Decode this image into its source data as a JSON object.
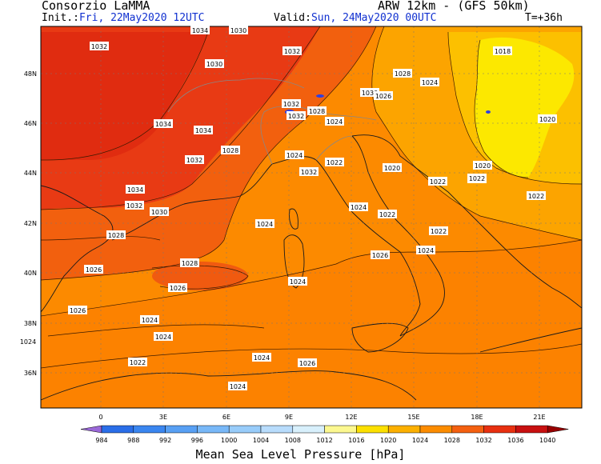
{
  "header": {
    "org": "Consorzio LaMMA",
    "model": "ARW 12km - (GFS 50km)",
    "init_label": "Init.:",
    "init_value": "Fri, 22May2020 12UTC",
    "valid_label": "Valid:",
    "valid_value": "Sun, 24May2020 00UTC",
    "lead": "T=+36h"
  },
  "axes": {
    "lat_labels": [
      "48N",
      "46N",
      "44N",
      "42N",
      "40N",
      "38N",
      "36N"
    ],
    "lon_labels": [
      "0",
      "3E",
      "6E",
      "9E",
      "12E",
      "15E",
      "18E",
      "21E"
    ]
  },
  "isobar_labels": [
    "1034",
    "1032",
    "1030",
    "1032",
    "1030",
    "1028",
    "1024",
    "1018",
    "1034",
    "1034",
    "1032",
    "1030",
    "1026",
    "1032",
    "1028",
    "1024",
    "1020",
    "1028",
    "1032",
    "1024",
    "1022",
    "1020",
    "1020",
    "1022",
    "1032",
    "1034",
    "1032",
    "1030",
    "1024",
    "1022",
    "1022",
    "1022",
    "1022",
    "1028",
    "1024",
    "1022",
    "1026",
    "1024",
    "1028",
    "1026",
    "1026",
    "1024",
    "1026",
    "1024",
    "1024",
    "1024",
    "1022",
    "1024",
    "1026",
    "1024"
  ],
  "colorbar": {
    "values": [
      "984",
      "988",
      "992",
      "996",
      "1000",
      "1004",
      "1008",
      "1012",
      "1016",
      "1020",
      "1024",
      "1028",
      "1032",
      "1036",
      "1040"
    ],
    "colors": [
      "#9a68d8",
      "#2a6ee8",
      "#3a86f0",
      "#58a0f4",
      "#78b8f8",
      "#98ccfa",
      "#b8dcfc",
      "#d8f0fc",
      "#fcf890",
      "#fce000",
      "#fcb000",
      "#fc8c00",
      "#f46010",
      "#e83010",
      "#c81010",
      "#980000"
    ],
    "title": "Mean Sea Level Pressure [hPa]"
  }
}
